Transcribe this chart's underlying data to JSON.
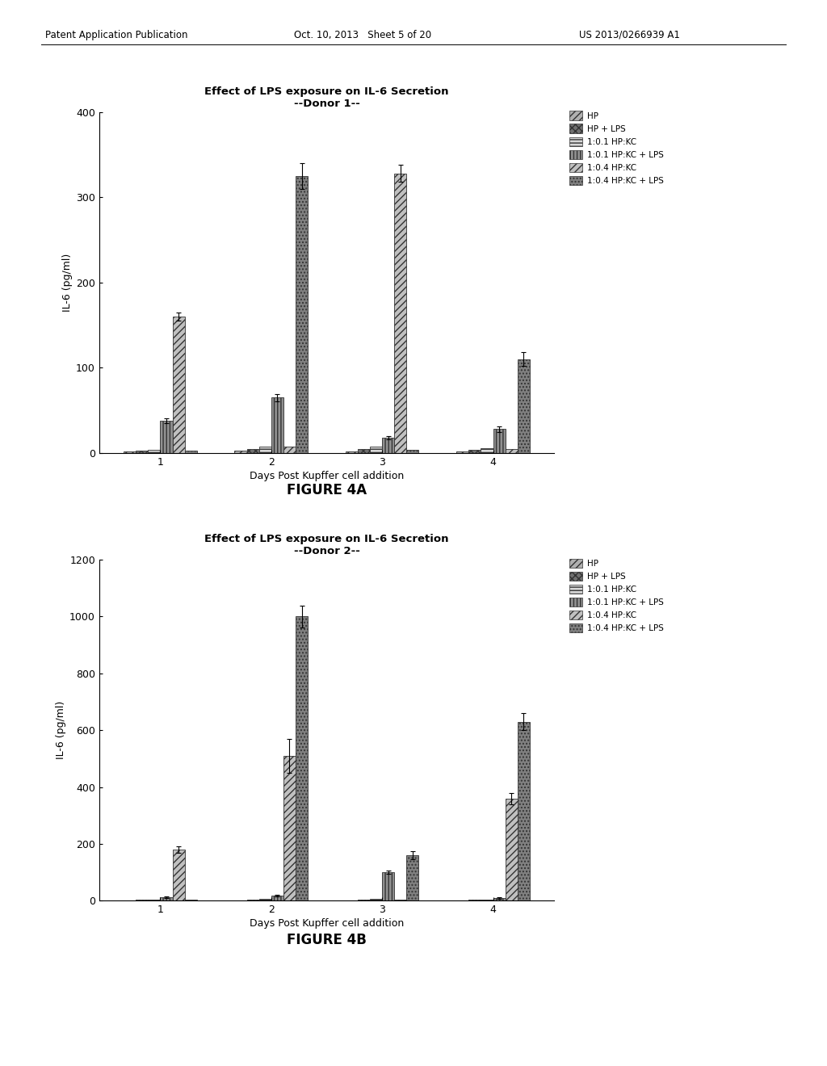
{
  "fig4a": {
    "title_line1": "Effect of LPS exposure on IL-6 Secretion",
    "title_line2": "--Donor 1--",
    "xlabel": "Days Post Kupffer cell addition",
    "ylabel": "IL-6 (pg/ml)",
    "ylim": [
      0,
      400
    ],
    "yticks": [
      0,
      100,
      200,
      300,
      400
    ],
    "days": [
      1,
      2,
      3,
      4
    ],
    "series": {
      "HP": [
        2,
        3,
        2,
        2
      ],
      "HP + LPS": [
        3,
        5,
        5,
        4
      ],
      "1:0.1 HP:KC": [
        4,
        8,
        8,
        6
      ],
      "1:0.1 HP:KC + LPS": [
        38,
        65,
        18,
        28
      ],
      "1:0.4 HP:KC": [
        160,
        8,
        328,
        5
      ],
      "1:0.4 HP:KC + LPS": [
        3,
        325,
        4,
        110
      ]
    },
    "errors": {
      "HP": [
        0,
        0,
        0,
        0
      ],
      "HP + LPS": [
        0,
        0,
        0,
        0
      ],
      "1:0.1 HP:KC": [
        0,
        0,
        0,
        0
      ],
      "1:0.1 HP:KC + LPS": [
        3,
        4,
        2,
        3
      ],
      "1:0.4 HP:KC": [
        5,
        0,
        10,
        0
      ],
      "1:0.4 HP:KC + LPS": [
        0,
        15,
        0,
        8
      ]
    }
  },
  "fig4b": {
    "title_line1": "Effect of LPS exposure on IL-6 Secretion",
    "title_line2": "--Donor 2--",
    "xlabel": "Days Post Kupffer cell addition",
    "ylabel": "IL-6 (pg/ml)",
    "ylim": [
      0,
      1200
    ],
    "yticks": [
      0,
      200,
      400,
      600,
      800,
      1000,
      1200
    ],
    "days": [
      1,
      2,
      3,
      4
    ],
    "series": {
      "HP": [
        2,
        2,
        2,
        2
      ],
      "HP + LPS": [
        3,
        4,
        3,
        3
      ],
      "1:0.1 HP:KC": [
        5,
        6,
        8,
        5
      ],
      "1:0.1 HP:KC + LPS": [
        12,
        18,
        100,
        10
      ],
      "1:0.4 HP:KC": [
        180,
        510,
        3,
        360
      ],
      "1:0.4 HP:KC + LPS": [
        5,
        1000,
        160,
        630
      ]
    },
    "errors": {
      "HP": [
        0,
        0,
        0,
        0
      ],
      "HP + LPS": [
        0,
        0,
        0,
        0
      ],
      "1:0.1 HP:KC": [
        0,
        0,
        0,
        0
      ],
      "1:0.1 HP:KC + LPS": [
        2,
        2,
        5,
        2
      ],
      "1:0.4 HP:KC": [
        12,
        60,
        0,
        20
      ],
      "1:0.4 HP:KC + LPS": [
        0,
        38,
        15,
        30
      ]
    }
  },
  "legend_labels": [
    "HP",
    "HP + LPS",
    "1:0.1 HP:KC",
    "1:0.1 HP:KC + LPS",
    "1:0.4 HP:KC",
    "1:0.4 HP:KC + LPS"
  ],
  "figure4a_label": "FIGURE 4A",
  "figure4b_label": "FIGURE 4B",
  "header_left": "Patent Application Publication",
  "header_center": "Oct. 10, 2013   Sheet 5 of 20",
  "header_right": "US 2013/0266939 A1",
  "bg_color": "#ffffff",
  "bar_width": 0.11
}
